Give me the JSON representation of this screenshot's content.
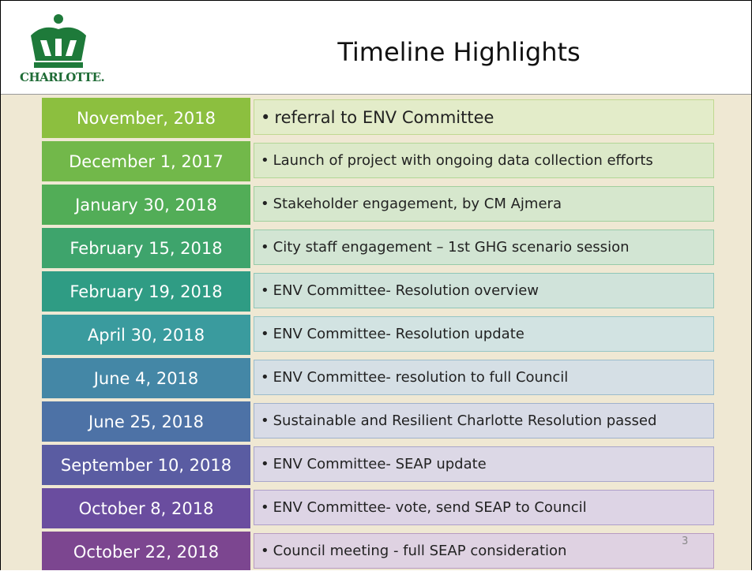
{
  "header": {
    "title": "Timeline Highlights",
    "logo_text": "CHARLOTTE."
  },
  "rows": [
    {
      "date": "November, 2018",
      "item": "referral to ENV Committee"
    },
    {
      "date": "December 1, 2017",
      "item": "Launch of project with ongoing data collection efforts"
    },
    {
      "date": "January 30, 2018",
      "item": "Stakeholder engagement, by CM Ajmera"
    },
    {
      "date": "February 15, 2018",
      "item": "City staff engagement – 1st GHG scenario session"
    },
    {
      "date": "February 19, 2018",
      "item": "ENV Committee- Resolution overview"
    },
    {
      "date": "April 30, 2018",
      "item": "ENV Committee- Resolution update"
    },
    {
      "date": "June 4, 2018",
      "item": "ENV Committee- resolution to full Council"
    },
    {
      "date": "June 25, 2018",
      "item": "Sustainable and Resilient Charlotte Resolution passed"
    },
    {
      "date": "September 10, 2018",
      "item": "ENV Committee- SEAP update"
    },
    {
      "date": "October 8, 2018",
      "item": "ENV Committee- vote, send SEAP to Council"
    },
    {
      "date": "October 22, 2018",
      "item": "Council meeting - full SEAP consideration"
    }
  ],
  "page_number": "3"
}
